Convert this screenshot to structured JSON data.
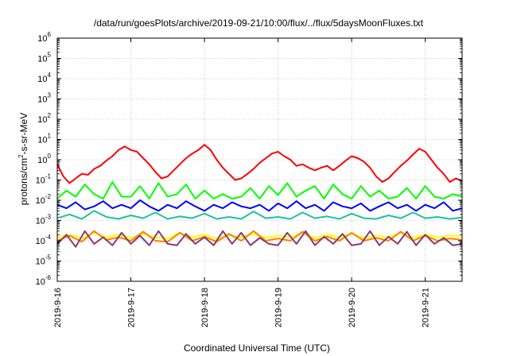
{
  "chart_data": {
    "type": "line",
    "title": "/data/run/goesPlots/archive/2019-09-21/10:00/flux/../flux/5daysMoonFluxes.txt",
    "xlabel": "Coordinated Universal Time (UTC)",
    "ylabel": {
      "base": "protons/cm",
      "sup": "2",
      "rest": "-s-sr-MeV"
    },
    "yscale": "log",
    "ylim": [
      1e-06,
      1000000.0
    ],
    "xlim": [
      "2019-09-16",
      "2019-09-21 12:00"
    ],
    "y_ticks": [
      {
        "base": "10",
        "exp": "-6",
        "value": 1e-06
      },
      {
        "base": "10",
        "exp": "-5",
        "value": 1e-05
      },
      {
        "base": "10",
        "exp": "-4",
        "value": 0.0001
      },
      {
        "base": "10",
        "exp": "-3",
        "value": 0.001
      },
      {
        "base": "10",
        "exp": "-2",
        "value": 0.01
      },
      {
        "base": "10",
        "exp": "-1",
        "value": 0.1
      },
      {
        "base": "10",
        "exp": "0",
        "value": 1.0
      },
      {
        "base": "10",
        "exp": "1",
        "value": 10.0
      },
      {
        "base": "10",
        "exp": "2",
        "value": 100.0
      },
      {
        "base": "10",
        "exp": "3",
        "value": 1000.0
      },
      {
        "base": "10",
        "exp": "4",
        "value": 10000.0
      },
      {
        "base": "10",
        "exp": "5",
        "value": 100000.0
      },
      {
        "base": "10",
        "exp": "6",
        "value": 1000000.0
      }
    ],
    "x_ticks": [
      {
        "label": "2019-9-16",
        "date": "2019-09-16"
      },
      {
        "label": "2019-9-17",
        "date": "2019-09-17"
      },
      {
        "label": "2019-9-18",
        "date": "2019-09-18"
      },
      {
        "label": "2019-9-19",
        "date": "2019-09-19"
      },
      {
        "label": "2019-9-20",
        "date": "2019-09-20"
      },
      {
        "label": "2019-9-21",
        "date": "2019-09-21"
      }
    ],
    "grid": true,
    "series": [
      {
        "color": "#ff0000",
        "x": [
          "2019-09-16 00:00",
          "2019-09-16 02:00",
          "2019-09-16 04:00",
          "2019-09-16 06:00",
          "2019-09-16 08:00",
          "2019-09-16 10:00",
          "2019-09-16 12:00",
          "2019-09-16 14:00",
          "2019-09-16 16:00",
          "2019-09-16 18:00",
          "2019-09-16 20:00",
          "2019-09-16 22:00",
          "2019-09-17 00:00",
          "2019-09-17 02:00",
          "2019-09-17 04:00",
          "2019-09-17 06:00",
          "2019-09-17 08:00",
          "2019-09-17 10:00",
          "2019-09-17 12:00",
          "2019-09-17 14:00",
          "2019-09-17 16:00",
          "2019-09-17 18:00",
          "2019-09-17 20:00",
          "2019-09-17 22:00",
          "2019-09-18 00:00",
          "2019-09-18 02:00",
          "2019-09-18 04:00",
          "2019-09-18 06:00",
          "2019-09-18 08:00",
          "2019-09-18 10:00",
          "2019-09-18 12:00",
          "2019-09-18 14:00",
          "2019-09-18 16:00",
          "2019-09-18 18:00",
          "2019-09-18 20:00",
          "2019-09-18 22:00",
          "2019-09-19 00:00",
          "2019-09-19 02:00",
          "2019-09-19 04:00",
          "2019-09-19 06:00",
          "2019-09-19 08:00",
          "2019-09-19 10:00",
          "2019-09-19 12:00",
          "2019-09-19 14:00",
          "2019-09-19 16:00",
          "2019-09-19 18:00",
          "2019-09-19 20:00",
          "2019-09-19 22:00",
          "2019-09-20 00:00",
          "2019-09-20 02:00",
          "2019-09-20 04:00",
          "2019-09-20 06:00",
          "2019-09-20 08:00",
          "2019-09-20 10:00",
          "2019-09-20 12:00",
          "2019-09-20 14:00",
          "2019-09-20 16:00",
          "2019-09-20 18:00",
          "2019-09-20 20:00",
          "2019-09-20 22:00",
          "2019-09-21 00:00",
          "2019-09-21 02:00",
          "2019-09-21 04:00",
          "2019-09-21 06:00",
          "2019-09-21 08:00",
          "2019-09-21 10:00",
          "2019-09-21 12:00"
        ],
        "y": [
          0.6,
          0.15,
          0.07,
          0.12,
          0.2,
          0.18,
          0.35,
          0.5,
          0.9,
          1.5,
          3.0,
          4.5,
          3.0,
          2.5,
          1.2,
          0.6,
          0.25,
          0.12,
          0.15,
          0.3,
          0.6,
          1.2,
          2.0,
          3.0,
          5.5,
          3.0,
          1.0,
          0.4,
          0.2,
          0.1,
          0.12,
          0.2,
          0.35,
          0.7,
          1.2,
          2.0,
          2.5,
          1.5,
          1.0,
          0.5,
          0.6,
          0.4,
          0.3,
          0.4,
          0.5,
          0.3,
          0.5,
          0.9,
          1.5,
          1.2,
          0.8,
          0.4,
          0.15,
          0.08,
          0.12,
          0.25,
          0.5,
          0.9,
          1.8,
          3.5,
          2.5,
          1.0,
          0.4,
          0.2,
          0.08,
          0.12,
          0.09
        ]
      },
      {
        "color": "#00ff00",
        "x": [
          "2019-09-16 00:00",
          "2019-09-16 03:00",
          "2019-09-16 06:00",
          "2019-09-16 09:00",
          "2019-09-16 12:00",
          "2019-09-16 15:00",
          "2019-09-16 18:00",
          "2019-09-16 21:00",
          "2019-09-17 00:00",
          "2019-09-17 03:00",
          "2019-09-17 06:00",
          "2019-09-17 09:00",
          "2019-09-17 12:00",
          "2019-09-17 15:00",
          "2019-09-17 18:00",
          "2019-09-17 21:00",
          "2019-09-18 00:00",
          "2019-09-18 03:00",
          "2019-09-18 06:00",
          "2019-09-18 09:00",
          "2019-09-18 12:00",
          "2019-09-18 15:00",
          "2019-09-18 18:00",
          "2019-09-18 21:00",
          "2019-09-19 00:00",
          "2019-09-19 03:00",
          "2019-09-19 06:00",
          "2019-09-19 09:00",
          "2019-09-19 12:00",
          "2019-09-19 15:00",
          "2019-09-19 18:00",
          "2019-09-19 21:00",
          "2019-09-20 00:00",
          "2019-09-20 03:00",
          "2019-09-20 06:00",
          "2019-09-20 09:00",
          "2019-09-20 12:00",
          "2019-09-20 15:00",
          "2019-09-20 18:00",
          "2019-09-20 21:00",
          "2019-09-21 00:00",
          "2019-09-21 03:00",
          "2019-09-21 06:00",
          "2019-09-21 09:00",
          "2019-09-21 12:00"
        ],
        "y": [
          0.012,
          0.03,
          0.015,
          0.06,
          0.02,
          0.012,
          0.08,
          0.015,
          0.015,
          0.05,
          0.012,
          0.07,
          0.015,
          0.02,
          0.06,
          0.012,
          0.03,
          0.012,
          0.02,
          0.012,
          0.015,
          0.04,
          0.012,
          0.05,
          0.018,
          0.07,
          0.015,
          0.03,
          0.05,
          0.012,
          0.06,
          0.02,
          0.012,
          0.05,
          0.015,
          0.03,
          0.012,
          0.015,
          0.04,
          0.012,
          0.05,
          0.015,
          0.012,
          0.02,
          0.015
        ]
      },
      {
        "color": "#0000ff",
        "x": [
          "2019-09-16 00:00",
          "2019-09-16 03:00",
          "2019-09-16 06:00",
          "2019-09-16 09:00",
          "2019-09-16 12:00",
          "2019-09-16 15:00",
          "2019-09-16 18:00",
          "2019-09-16 21:00",
          "2019-09-17 00:00",
          "2019-09-17 03:00",
          "2019-09-17 06:00",
          "2019-09-17 09:00",
          "2019-09-17 12:00",
          "2019-09-17 15:00",
          "2019-09-17 18:00",
          "2019-09-17 21:00",
          "2019-09-18 00:00",
          "2019-09-18 03:00",
          "2019-09-18 06:00",
          "2019-09-18 09:00",
          "2019-09-18 12:00",
          "2019-09-18 15:00",
          "2019-09-18 18:00",
          "2019-09-18 21:00",
          "2019-09-19 00:00",
          "2019-09-19 03:00",
          "2019-09-19 06:00",
          "2019-09-19 09:00",
          "2019-09-19 12:00",
          "2019-09-19 15:00",
          "2019-09-19 18:00",
          "2019-09-19 21:00",
          "2019-09-20 00:00",
          "2019-09-20 03:00",
          "2019-09-20 06:00",
          "2019-09-20 09:00",
          "2019-09-20 12:00",
          "2019-09-20 15:00",
          "2019-09-20 18:00",
          "2019-09-20 21:00",
          "2019-09-21 00:00",
          "2019-09-21 03:00",
          "2019-09-21 06:00",
          "2019-09-21 09:00",
          "2019-09-21 12:00"
        ],
        "y": [
          0.006,
          0.004,
          0.008,
          0.0035,
          0.005,
          0.009,
          0.004,
          0.006,
          0.004,
          0.01,
          0.005,
          0.003,
          0.006,
          0.004,
          0.009,
          0.005,
          0.003,
          0.006,
          0.004,
          0.008,
          0.005,
          0.004,
          0.006,
          0.003,
          0.007,
          0.004,
          0.009,
          0.004,
          0.006,
          0.003,
          0.008,
          0.005,
          0.004,
          0.007,
          0.003,
          0.005,
          0.008,
          0.004,
          0.006,
          0.003,
          0.006,
          0.004,
          0.008,
          0.003,
          0.004
        ]
      },
      {
        "color": "#20c0a0",
        "x": [
          "2019-09-16 00:00",
          "2019-09-16 04:00",
          "2019-09-16 08:00",
          "2019-09-16 12:00",
          "2019-09-16 16:00",
          "2019-09-16 20:00",
          "2019-09-17 00:00",
          "2019-09-17 04:00",
          "2019-09-17 08:00",
          "2019-09-17 12:00",
          "2019-09-17 16:00",
          "2019-09-17 20:00",
          "2019-09-18 00:00",
          "2019-09-18 04:00",
          "2019-09-18 08:00",
          "2019-09-18 12:00",
          "2019-09-18 16:00",
          "2019-09-18 20:00",
          "2019-09-19 00:00",
          "2019-09-19 04:00",
          "2019-09-19 08:00",
          "2019-09-19 12:00",
          "2019-09-19 16:00",
          "2019-09-19 20:00",
          "2019-09-20 00:00",
          "2019-09-20 04:00",
          "2019-09-20 08:00",
          "2019-09-20 12:00",
          "2019-09-20 16:00",
          "2019-09-20 20:00",
          "2019-09-21 00:00",
          "2019-09-21 04:00",
          "2019-09-21 08:00",
          "2019-09-21 12:00"
        ],
        "y": [
          0.0013,
          0.002,
          0.0012,
          0.003,
          0.0015,
          0.0012,
          0.0018,
          0.0013,
          0.0025,
          0.0012,
          0.0016,
          0.0013,
          0.0022,
          0.0012,
          0.0015,
          0.0012,
          0.0028,
          0.0013,
          0.0015,
          0.0012,
          0.0025,
          0.0013,
          0.0016,
          0.0012,
          0.0022,
          0.0013,
          0.0012,
          0.0018,
          0.0013,
          0.0025,
          0.0013,
          0.0015,
          0.0012,
          0.0014
        ]
      },
      {
        "color": "#ffff00",
        "x": [
          "2019-09-16 00:00",
          "2019-09-16 04:00",
          "2019-09-16 08:00",
          "2019-09-16 12:00",
          "2019-09-16 16:00",
          "2019-09-16 20:00",
          "2019-09-17 00:00",
          "2019-09-17 04:00",
          "2019-09-17 08:00",
          "2019-09-17 12:00",
          "2019-09-17 16:00",
          "2019-09-17 20:00",
          "2019-09-18 00:00",
          "2019-09-18 04:00",
          "2019-09-18 08:00",
          "2019-09-18 12:00",
          "2019-09-18 16:00",
          "2019-09-18 20:00",
          "2019-09-19 00:00",
          "2019-09-19 04:00",
          "2019-09-19 08:00",
          "2019-09-19 12:00",
          "2019-09-19 16:00",
          "2019-09-19 20:00",
          "2019-09-20 00:00",
          "2019-09-20 04:00",
          "2019-09-20 08:00",
          "2019-09-20 12:00",
          "2019-09-20 16:00",
          "2019-09-20 20:00",
          "2019-09-21 00:00",
          "2019-09-21 04:00",
          "2019-09-21 08:00",
          "2019-09-21 12:00"
        ],
        "y": [
          0.00015,
          0.0002,
          0.00013,
          0.00025,
          0.00015,
          0.0002,
          0.00014,
          0.00022,
          0.00015,
          0.00013,
          0.00025,
          0.00015,
          0.0002,
          0.00013,
          0.00018,
          0.00015,
          0.00022,
          0.00014,
          0.00018,
          0.00015,
          0.00025,
          0.00014,
          0.0002,
          0.00015,
          0.00022,
          0.00014,
          0.00018,
          0.00015,
          0.00025,
          0.00014,
          0.0002,
          0.00015,
          0.00018,
          0.00016
        ]
      },
      {
        "color": "#ff8000",
        "x": [
          "2019-09-16 00:00",
          "2019-09-16 04:00",
          "2019-09-16 08:00",
          "2019-09-16 12:00",
          "2019-09-16 16:00",
          "2019-09-16 20:00",
          "2019-09-17 00:00",
          "2019-09-17 04:00",
          "2019-09-17 08:00",
          "2019-09-17 12:00",
          "2019-09-17 16:00",
          "2019-09-17 20:00",
          "2019-09-18 00:00",
          "2019-09-18 04:00",
          "2019-09-18 08:00",
          "2019-09-18 12:00",
          "2019-09-18 16:00",
          "2019-09-18 20:00",
          "2019-09-19 00:00",
          "2019-09-19 04:00",
          "2019-09-19 08:00",
          "2019-09-19 12:00",
          "2019-09-19 16:00",
          "2019-09-19 20:00",
          "2019-09-20 00:00",
          "2019-09-20 04:00",
          "2019-09-20 08:00",
          "2019-09-20 12:00",
          "2019-09-20 16:00",
          "2019-09-20 20:00",
          "2019-09-21 00:00",
          "2019-09-21 04:00",
          "2019-09-21 08:00",
          "2019-09-21 12:00"
        ],
        "y": [
          0.0001,
          0.00018,
          9e-05,
          0.0003,
          0.00011,
          0.00015,
          0.0001,
          0.00028,
          0.0001,
          9e-05,
          0.00025,
          0.0001,
          0.00016,
          9e-05,
          0.00022,
          0.0001,
          0.0003,
          0.0001,
          0.00013,
          0.0001,
          0.00028,
          0.0001,
          0.00016,
          0.0001,
          0.00025,
          0.0001,
          0.00014,
          0.0001,
          0.00028,
          0.0001,
          0.00018,
          0.0001,
          0.00013,
          0.00011
        ]
      },
      {
        "color": "#8b3a6e",
        "x": [
          "2019-09-16 00:00",
          "2019-09-16 03:00",
          "2019-09-16 06:00",
          "2019-09-16 09:00",
          "2019-09-16 12:00",
          "2019-09-16 15:00",
          "2019-09-16 18:00",
          "2019-09-16 21:00",
          "2019-09-17 00:00",
          "2019-09-17 03:00",
          "2019-09-17 06:00",
          "2019-09-17 09:00",
          "2019-09-17 12:00",
          "2019-09-17 15:00",
          "2019-09-17 18:00",
          "2019-09-17 21:00",
          "2019-09-18 00:00",
          "2019-09-18 03:00",
          "2019-09-18 06:00",
          "2019-09-18 09:00",
          "2019-09-18 12:00",
          "2019-09-18 15:00",
          "2019-09-18 18:00",
          "2019-09-18 21:00",
          "2019-09-19 00:00",
          "2019-09-19 03:00",
          "2019-09-19 06:00",
          "2019-09-19 09:00",
          "2019-09-19 12:00",
          "2019-09-19 15:00",
          "2019-09-19 18:00",
          "2019-09-19 21:00",
          "2019-09-20 00:00",
          "2019-09-20 03:00",
          "2019-09-20 06:00",
          "2019-09-20 09:00",
          "2019-09-20 12:00",
          "2019-09-20 15:00",
          "2019-09-20 18:00",
          "2019-09-20 21:00",
          "2019-09-21 00:00",
          "2019-09-21 03:00",
          "2019-09-21 06:00",
          "2019-09-21 09:00",
          "2019-09-21 12:00"
        ],
        "y": [
          7e-05,
          0.0002,
          5e-05,
          0.0003,
          7e-05,
          0.00015,
          6e-05,
          0.00025,
          7e-05,
          0.00018,
          6e-05,
          0.0003,
          7e-05,
          6e-05,
          0.00022,
          7e-05,
          0.00015,
          6e-05,
          0.0003,
          7e-05,
          0.00025,
          6e-05,
          0.00014,
          7e-05,
          6e-05,
          0.00025,
          7e-05,
          0.0003,
          6e-05,
          0.00016,
          7e-05,
          0.00022,
          6e-05,
          7e-05,
          0.0003,
          6e-05,
          0.00016,
          7e-05,
          0.00028,
          6e-05,
          0.0002,
          7e-05,
          0.00014,
          6e-05,
          7e-05
        ]
      }
    ]
  }
}
